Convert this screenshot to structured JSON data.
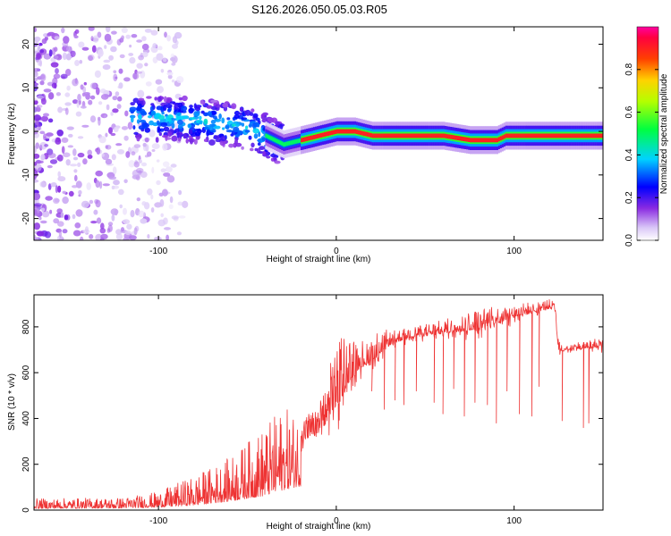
{
  "figure_title": "S126.2026.050.05.03.R05",
  "chart_data": [
    {
      "type": "heatmap",
      "title": "S126.2026.050.05.03.R05",
      "xlabel": "Height of straight line (km)",
      "ylabel": "Frequency (Hz)",
      "xlim": [
        -170,
        150
      ],
      "ylim": [
        -25,
        24
      ],
      "xticks": [
        -100,
        0,
        100
      ],
      "yticks": [
        -20,
        -10,
        0,
        10,
        20
      ],
      "colorbar": {
        "label": "Normalized spectral amplitude",
        "range": [
          0,
          1
        ],
        "ticks": [
          0.0,
          0.2,
          0.4,
          0.6,
          0.8
        ]
      },
      "ridge": {
        "description_points_x": [
          -110,
          -90,
          -70,
          -50,
          -40,
          -30,
          -20,
          -10,
          0,
          10,
          20,
          60,
          75,
          90,
          95,
          110,
          150
        ],
        "frequency": [
          3,
          3,
          2,
          1,
          -1,
          -3,
          -2,
          -1,
          0,
          0,
          -1,
          -1,
          -2,
          -2,
          -1,
          -1,
          -1
        ]
      },
      "regions": [
        {
          "x": [
            -170,
            -110
          ],
          "amplitude": "low, diffuse noise"
        },
        {
          "x": [
            -110,
            -35
          ],
          "amplitude": "moderate, scattered"
        },
        {
          "x": [
            -35,
            150
          ],
          "amplitude": "high, coherent ridge near 0 Hz"
        }
      ]
    },
    {
      "type": "line",
      "xlabel": "Height of straight line (km)",
      "ylabel": "SNR (10 * v/v)",
      "xlim": [
        -170,
        150
      ],
      "ylim": [
        0,
        940
      ],
      "xticks": [
        -100,
        0,
        100
      ],
      "yticks": [
        0,
        200,
        400,
        600,
        800
      ],
      "series_color": "#ee3333",
      "envelope": {
        "x": [
          -170,
          -120,
          -100,
          -80,
          -60,
          -40,
          -30,
          -20,
          -10,
          -5,
          0,
          5,
          10,
          20,
          25,
          30,
          40,
          60,
          80,
          100,
          110,
          120,
          123,
          125,
          130,
          140,
          150
        ],
        "base": [
          20,
          25,
          35,
          60,
          110,
          180,
          250,
          300,
          330,
          380,
          440,
          520,
          600,
          650,
          680,
          720,
          750,
          770,
          790,
          840,
          860,
          880,
          870,
          690,
          700,
          705,
          710
        ],
        "peak": [
          50,
          55,
          80,
          150,
          230,
          370,
          450,
          420,
          450,
          600,
          730,
          790,
          740,
          760,
          800,
          780,
          800,
          830,
          880,
          900,
          910,
          920,
          910,
          740,
          730,
          740,
          760
        ]
      },
      "dropouts": [
        {
          "x": 20,
          "y": 520
        },
        {
          "x": 27,
          "y": 440
        },
        {
          "x": 33,
          "y": 480
        },
        {
          "x": 38,
          "y": 460
        },
        {
          "x": 45,
          "y": 520
        },
        {
          "x": 55,
          "y": 470
        },
        {
          "x": 60,
          "y": 420
        },
        {
          "x": 66,
          "y": 530
        },
        {
          "x": 72,
          "y": 410
        },
        {
          "x": 78,
          "y": 470
        },
        {
          "x": 85,
          "y": 460
        },
        {
          "x": 90,
          "y": 380
        },
        {
          "x": 96,
          "y": 520
        },
        {
          "x": 103,
          "y": 420
        },
        {
          "x": 110,
          "y": 410
        },
        {
          "x": 114,
          "y": 540
        },
        {
          "x": 127,
          "y": 390
        },
        {
          "x": 139,
          "y": 360
        },
        {
          "x": 142,
          "y": 380
        }
      ]
    }
  ]
}
